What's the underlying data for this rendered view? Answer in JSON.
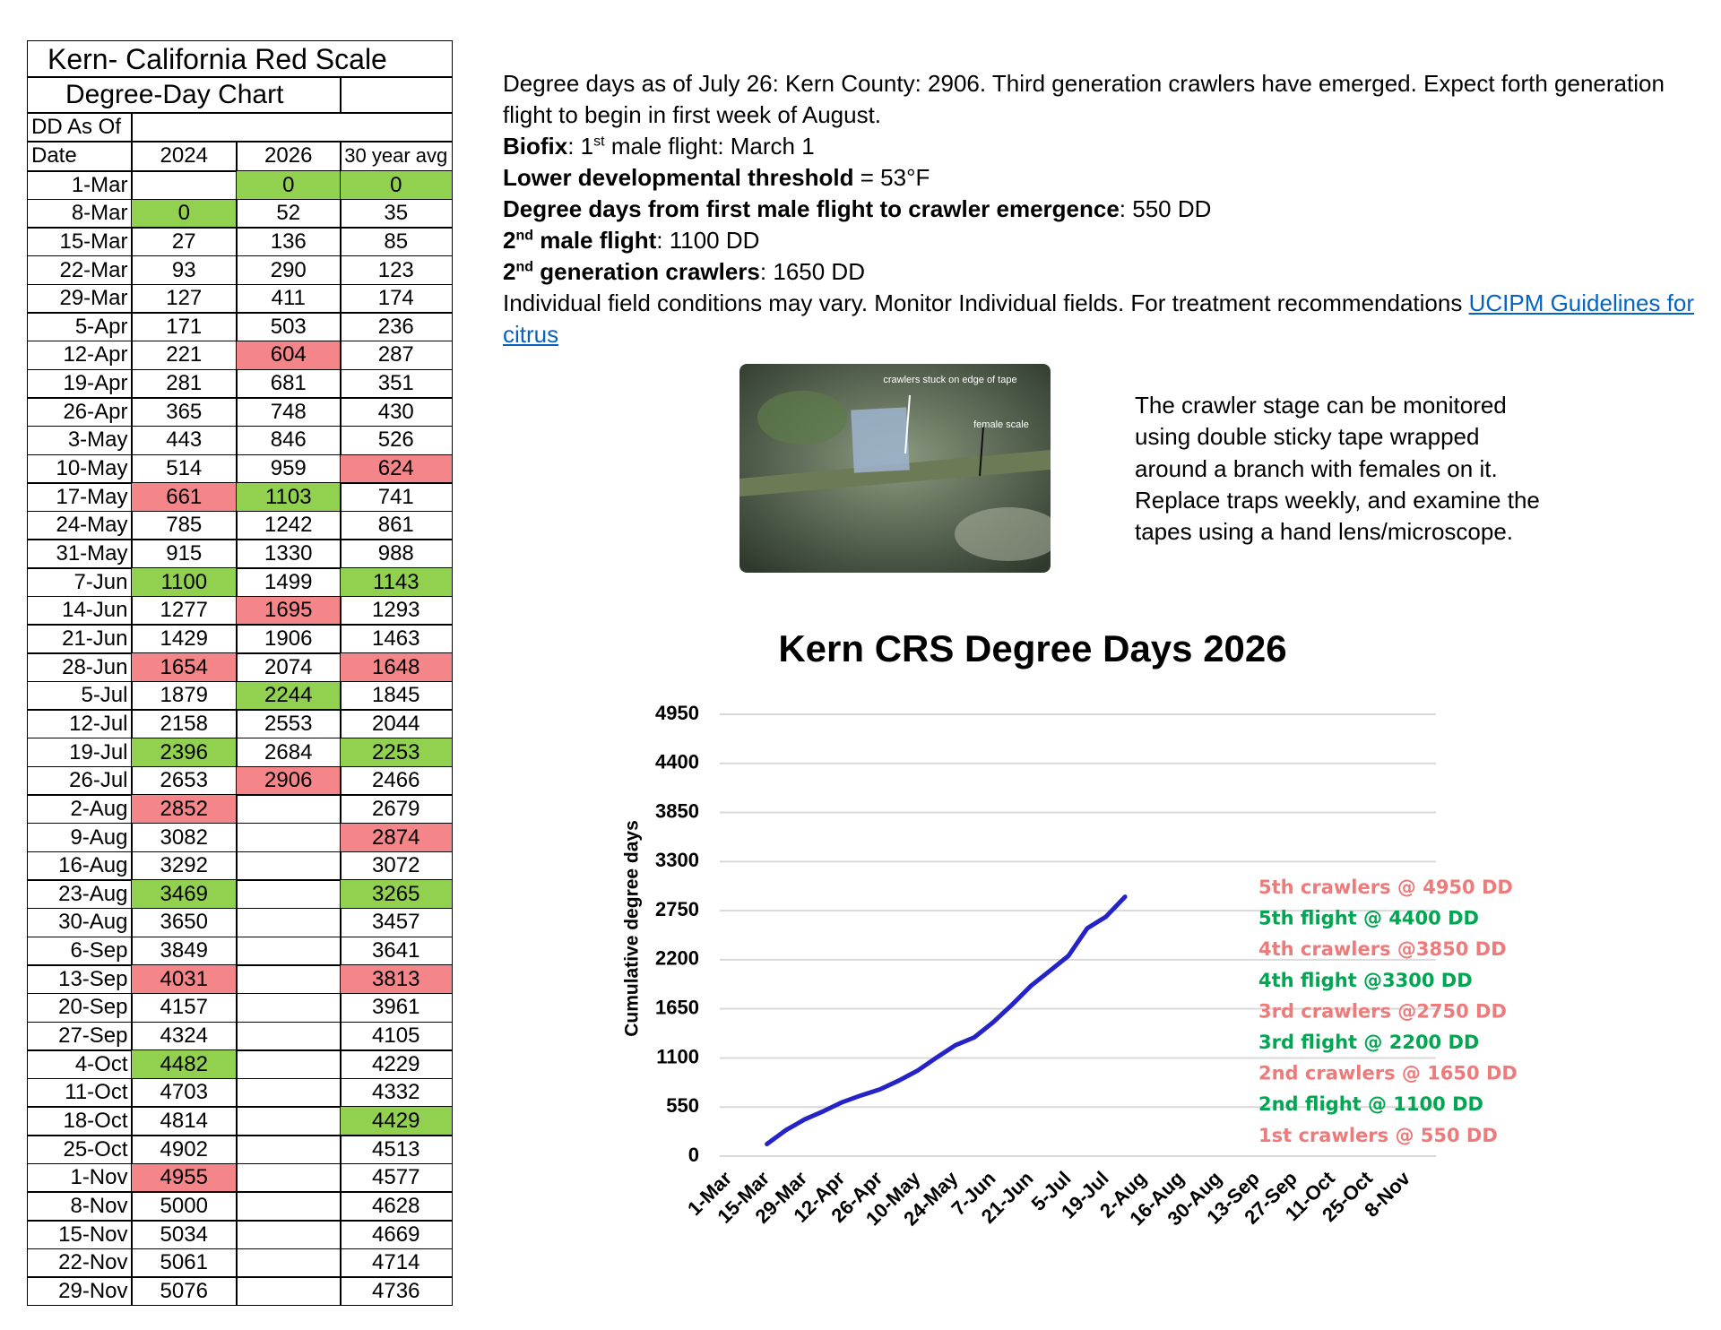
{
  "table": {
    "title": "Kern- California Red Scale",
    "subtitle": "Degree-Day Chart",
    "label": "DD As Of",
    "header": [
      "Date",
      "2024",
      "2026",
      "30 year avg"
    ],
    "colors": {
      "g": "#92d050",
      "r": "#f4868a"
    },
    "rows": [
      [
        "1-Mar",
        null,
        0,
        0
      ],
      [
        "8-Mar",
        0,
        52,
        35
      ],
      [
        "15-Mar",
        27,
        136,
        85
      ],
      [
        "22-Mar",
        93,
        290,
        123
      ],
      [
        "29-Mar",
        127,
        411,
        174
      ],
      [
        "5-Apr",
        171,
        503,
        236
      ],
      [
        "12-Apr",
        221,
        604,
        287
      ],
      [
        "19-Apr",
        281,
        681,
        351
      ],
      [
        "26-Apr",
        365,
        748,
        430
      ],
      [
        "3-May",
        443,
        846,
        526
      ],
      [
        "10-May",
        514,
        959,
        624
      ],
      [
        "17-May",
        661,
        1103,
        741
      ],
      [
        "24-May",
        785,
        1242,
        861
      ],
      [
        "31-May",
        915,
        1330,
        988
      ],
      [
        "7-Jun",
        1100,
        1499,
        1143
      ],
      [
        "14-Jun",
        1277,
        1695,
        1293
      ],
      [
        "21-Jun",
        1429,
        1906,
        1463
      ],
      [
        "28-Jun",
        1654,
        2074,
        1648
      ],
      [
        "5-Jul",
        1879,
        2244,
        1845
      ],
      [
        "12-Jul",
        2158,
        2553,
        2044
      ],
      [
        "19-Jul",
        2396,
        2684,
        2253
      ],
      [
        "26-Jul",
        2653,
        2906,
        2466
      ],
      [
        "2-Aug",
        2852,
        null,
        2679
      ],
      [
        "9-Aug",
        3082,
        null,
        2874
      ],
      [
        "16-Aug",
        3292,
        null,
        3072
      ],
      [
        "23-Aug",
        3469,
        null,
        3265
      ],
      [
        "30-Aug",
        3650,
        null,
        3457
      ],
      [
        "6-Sep",
        3849,
        null,
        3641
      ],
      [
        "13-Sep",
        4031,
        null,
        3813
      ],
      [
        "20-Sep",
        4157,
        null,
        3961
      ],
      [
        "27-Sep",
        4324,
        null,
        4105
      ],
      [
        "4-Oct",
        4482,
        null,
        4229
      ],
      [
        "11-Oct",
        4703,
        null,
        4332
      ],
      [
        "18-Oct",
        4814,
        null,
        4429
      ],
      [
        "25-Oct",
        4902,
        null,
        4513
      ],
      [
        "1-Nov",
        4955,
        null,
        4577
      ],
      [
        "8-Nov",
        5000,
        null,
        4628
      ],
      [
        "15-Nov",
        5034,
        null,
        4669
      ],
      [
        "22-Nov",
        5061,
        null,
        4714
      ],
      [
        "29-Nov",
        5076,
        null,
        4736
      ]
    ],
    "cell_colors": [
      [
        null,
        null,
        "g",
        "g"
      ],
      [
        null,
        "g",
        null,
        null
      ],
      null,
      null,
      null,
      null,
      [
        null,
        null,
        "r",
        null
      ],
      null,
      null,
      null,
      [
        null,
        null,
        null,
        "r"
      ],
      [
        null,
        "r",
        "g",
        null
      ],
      null,
      null,
      [
        null,
        "g",
        null,
        "g"
      ],
      [
        null,
        null,
        "r",
        null
      ],
      null,
      [
        null,
        "r",
        null,
        "r"
      ],
      [
        null,
        null,
        "g",
        null
      ],
      null,
      [
        null,
        "g",
        null,
        "g"
      ],
      [
        null,
        null,
        "r",
        null
      ],
      [
        null,
        "r",
        null,
        null
      ],
      [
        null,
        null,
        null,
        "r"
      ],
      null,
      [
        null,
        "g",
        null,
        "g"
      ],
      null,
      null,
      [
        null,
        "r",
        null,
        "r"
      ],
      null,
      null,
      [
        null,
        "g",
        null,
        null
      ],
      null,
      [
        null,
        null,
        null,
        "g"
      ],
      null,
      [
        null,
        "r",
        null,
        null
      ],
      null,
      null,
      null,
      null
    ]
  },
  "notes": [
    [
      {
        "text": "Degree days as of July 26: Kern County: 2906. Third generation crawlers have emerged. Expect forth generation flight to begin in first week of August."
      }
    ],
    [
      {
        "text": "Biofix",
        "style": "b"
      },
      {
        "text": ": 1"
      },
      {
        "text": "st",
        "style": "sup"
      },
      {
        "text": " male flight: March 1"
      }
    ],
    [
      {
        "text": "Lower developmental threshold",
        "style": "b"
      },
      {
        "text": " = 53°F"
      }
    ],
    [
      {
        "text": "Degree days from first male flight to crawler emergence",
        "style": "b"
      },
      {
        "text": ": 550 DD"
      }
    ],
    [
      {
        "text": "2",
        "style": "b"
      },
      {
        "text": "nd",
        "style": "sup-b"
      },
      {
        "text": " male flight",
        "style": "b"
      },
      {
        "text": ": 1100 DD"
      }
    ],
    [
      {
        "text": "2",
        "style": "b"
      },
      {
        "text": "nd",
        "style": "sup-b"
      },
      {
        "text": " generation crawlers",
        "style": "b"
      },
      {
        "text": ": 1650 DD"
      }
    ],
    [
      {
        "text": "Individual field conditions may vary. Monitor Individual fields. For treatment recommendations "
      },
      {
        "text": "UCIPM Guidelines for citrus",
        "style": "link"
      }
    ]
  ],
  "photo": {
    "labels": [
      "crawlers stuck on edge of tape",
      "female scale"
    ]
  },
  "caption": [
    "The crawler stage can be monitored",
    "using double sticky tape wrapped",
    "around a branch with females on it.",
    "Replace traps weekly, and examine the",
    "tapes using a hand lens/microscope."
  ],
  "chart_data": {
    "type": "line",
    "title": "Kern CRS Degree Days 2026",
    "y_label": "Cumulative degree days",
    "categories": [
      "1-Mar",
      null,
      "15-Mar",
      null,
      "29-Mar",
      null,
      "12-Apr",
      null,
      "26-Apr",
      null,
      "10-May",
      null,
      "24-May",
      null,
      "7-Jun",
      null,
      "21-Jun",
      null,
      "5-Jul",
      null,
      "19-Jul",
      null,
      "2-Aug",
      null,
      "16-Aug",
      null,
      "30-Aug",
      null,
      "13-Sep",
      null,
      "27-Sep",
      null,
      "11-Oct",
      null,
      "25-Oct",
      null,
      "8-Nov",
      null
    ],
    "values": [
      null,
      null,
      136,
      290,
      411,
      503,
      604,
      681,
      748,
      846,
      959,
      1103,
      1242,
      1330,
      1499,
      1695,
      1906,
      2074,
      2244,
      2553,
      2684,
      2906,
      null,
      null,
      null,
      null,
      null,
      null,
      null,
      null,
      null,
      null,
      null,
      null,
      null,
      null,
      null,
      null
    ],
    "color": "#2323c8",
    "ylim": [
      0,
      4950
    ],
    "yticks": [
      0,
      550,
      1100,
      1650,
      2200,
      2750,
      3300,
      3850,
      4400,
      4950
    ],
    "grid": true,
    "annotations": [
      {
        "text": "5th crawlers @ 4950 DD",
        "color": "#ee7b7b"
      },
      {
        "text": "5th flight @ 4400 DD",
        "color": "#00a651"
      },
      {
        "text": "4th crawlers @3850 DD",
        "color": "#ee7b7b"
      },
      {
        "text": "4th flight @3300 DD",
        "color": "#00a651"
      },
      {
        "text": "3rd crawlers @2750 DD",
        "color": "#ee7b7b"
      },
      {
        "text": "3rd flight @ 2200 DD",
        "color": "#00a651"
      },
      {
        "text": "2nd crawlers @ 1650 DD",
        "color": "#ee7b7b"
      },
      {
        "text": "2nd flight @ 1100 DD",
        "color": "#00a651"
      },
      {
        "text": "1st crawlers @ 550 DD",
        "color": "#ee7b7b"
      }
    ]
  }
}
